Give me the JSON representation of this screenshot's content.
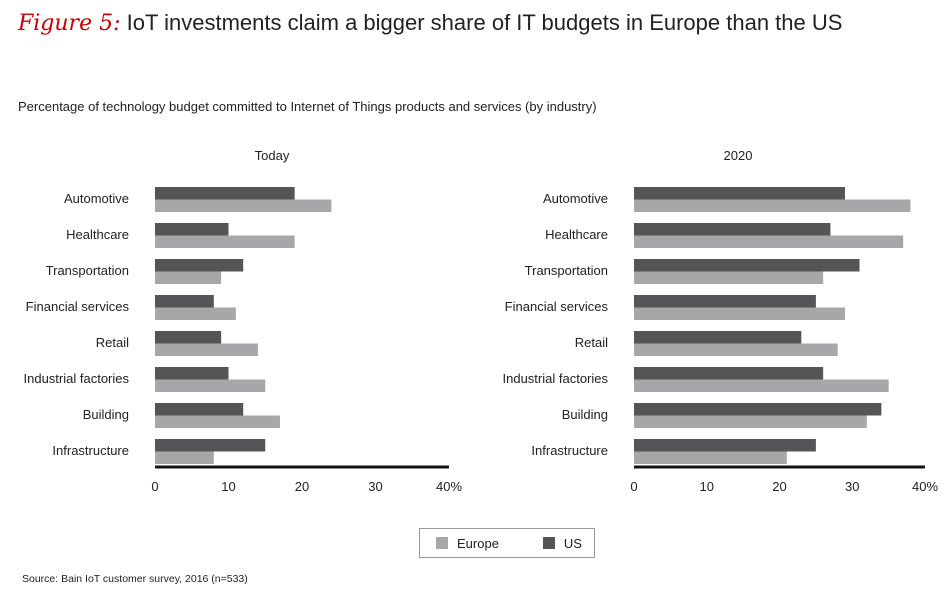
{
  "header": {
    "figure_label": "Figure 5:",
    "title": "IoT investments claim a bigger share of IT budgets in Europe than the US",
    "subtitle": "Percentage of technology budget committed to Internet of Things products and services (by industry)"
  },
  "colors": {
    "Europe": "#a7a7a9",
    "US": "#555557"
  },
  "legend": {
    "europe_label": "Europe",
    "us_label": "US"
  },
  "source": "Source: Bain IoT customer survey, 2016 (n=533)",
  "chart_data": [
    {
      "type": "bar",
      "orientation": "horizontal",
      "title": "Today",
      "categories": [
        "Automotive",
        "Healthcare",
        "Transportation",
        "Financial services",
        "Retail",
        "Industrial factories",
        "Building",
        "Infrastructure"
      ],
      "series": [
        {
          "name": "US",
          "values": [
            19,
            10,
            12,
            8,
            9,
            10,
            12,
            15
          ]
        },
        {
          "name": "Europe",
          "values": [
            24,
            19,
            9,
            11,
            14,
            15,
            17,
            8
          ]
        }
      ],
      "xlim": [
        0,
        40
      ],
      "xticks": [
        "0",
        "10",
        "20",
        "30",
        "40%"
      ]
    },
    {
      "type": "bar",
      "orientation": "horizontal",
      "title": "2020",
      "categories": [
        "Automotive",
        "Healthcare",
        "Transportation",
        "Financial services",
        "Retail",
        "Industrial factories",
        "Building",
        "Infrastructure"
      ],
      "series": [
        {
          "name": "US",
          "values": [
            29,
            27,
            31,
            25,
            23,
            26,
            34,
            25
          ]
        },
        {
          "name": "Europe",
          "values": [
            38,
            37,
            26,
            29,
            28,
            35,
            32,
            21
          ]
        }
      ],
      "xlim": [
        0,
        40
      ],
      "xticks": [
        "0",
        "10",
        "20",
        "30",
        "40%"
      ]
    }
  ]
}
